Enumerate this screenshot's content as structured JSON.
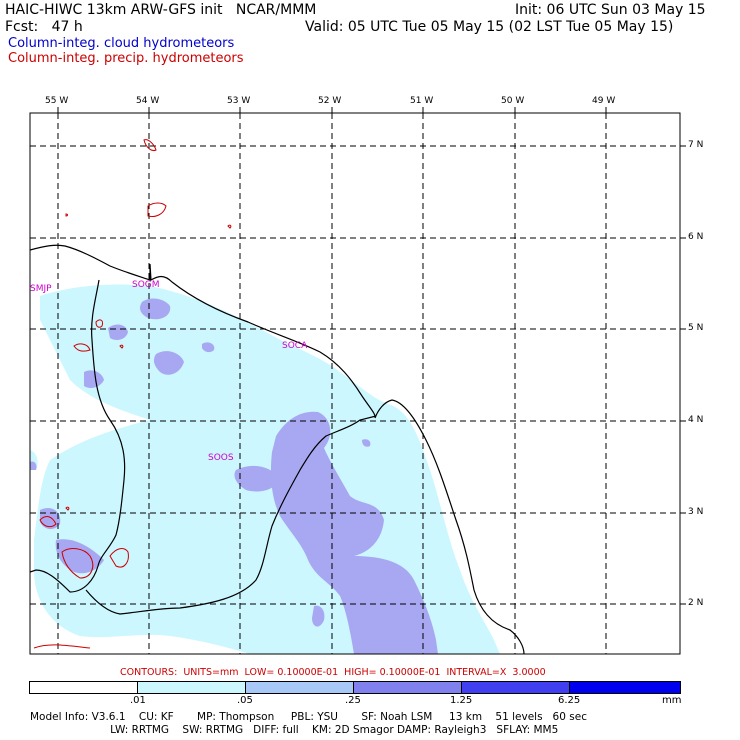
{
  "header": {
    "title": "HAIC-HIWC 13km ARW-GFS init   NCAR/MMM",
    "init": "Init: 06 UTC Sun 03 May 15",
    "fcst": "Fcst:   47 h",
    "valid": "Valid: 05 UTC Tue 05 May 15 (02 LST Tue 05 May 15)"
  },
  "legend": {
    "cloud": {
      "label": "Column-integ. cloud hydrometeors",
      "color": "#0000cc"
    },
    "precip": {
      "label": "Column-integ. precip. hydrometeors",
      "color": "#cc0000"
    }
  },
  "map": {
    "lon_labels": [
      "55 W",
      "54 W",
      "53 W",
      "52 W",
      "51 W",
      "50 W",
      "49 W"
    ],
    "lat_labels": [
      "7 N",
      "6 N",
      "5 N",
      "4 N",
      "3 N",
      "2 N"
    ],
    "sites": [
      "SMJP",
      "SOGM",
      "SOCA",
      "SOOS"
    ],
    "colors": {
      "coast": "#000000",
      "grid": "#000000",
      "fill_light": "#ccf7ff",
      "fill_mid": "#a8a8f2"
    }
  },
  "contours_line": "CONTOURS:  UNITS=mm  LOW= 0.10000E-01  HIGH= 0.10000E-01  INTERVAL=X  3.0000",
  "colorbar": {
    "labels": [
      ".01",
      ".05",
      ".25",
      "1.25",
      "6.25"
    ],
    "unit": "mm",
    "colors": [
      "#ffffff",
      "#ccf7ff",
      "#a8c8f8",
      "#8080ee",
      "#4040f0",
      "#0000ee"
    ]
  },
  "model_info": {
    "line1": "Model Info: V3.6.1    CU: KF       MP: Thompson     PBL: YSU       SF: Noah LSM     13 km    51 levels   60 sec",
    "line2": "                        LW: RRTMG    SW: RRTMG   DIFF: full    KM: 2D Smagor DAMP: Rayleigh3   SFLAY: MM5"
  }
}
